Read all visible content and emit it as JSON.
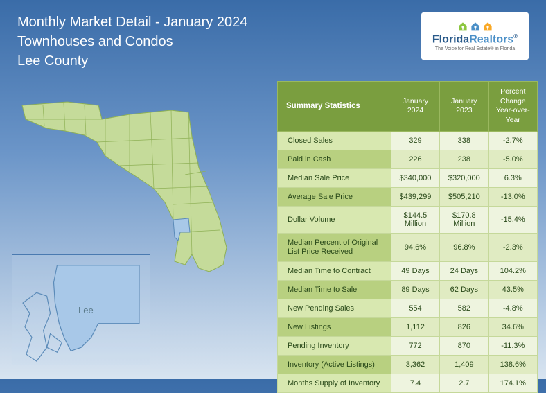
{
  "header": {
    "line1": "Monthly Market Detail - January 2024",
    "line2": "Townhouses and Condos",
    "line3": "Lee County"
  },
  "logo": {
    "brand_part1": "Florida",
    "brand_part2": "Realtors",
    "tagline": "The Voice for Real Estate® in Florida",
    "house_colors": [
      "#8cc63f",
      "#4a8fc7",
      "#f9a825"
    ]
  },
  "map": {
    "inset_label": "Lee",
    "florida_fill": "#c5db9a",
    "florida_stroke": "#8eb055",
    "highlight_fill": "#a8c8e8",
    "inset_stroke": "#4a7ab0"
  },
  "table": {
    "headers": {
      "col1": "Summary Statistics",
      "col2": "January 2024",
      "col3": "January 2023",
      "col4_line1": "Percent Change",
      "col4_line2": "Year-over-Year"
    },
    "colors": {
      "header_bg": "#7a9e3f",
      "header_text": "#ffffff",
      "odd_label_bg": "#d8e8b0",
      "odd_cell_bg": "#eef4df",
      "even_label_bg": "#b8d080",
      "even_cell_bg": "#e0ebc2",
      "border": "#c5d89a",
      "text": "#2a4a1a"
    },
    "rows": [
      {
        "label": "Closed Sales",
        "c1": "329",
        "c2": "338",
        "c3": "-2.7%"
      },
      {
        "label": "Paid in Cash",
        "c1": "226",
        "c2": "238",
        "c3": "-5.0%"
      },
      {
        "label": "Median Sale Price",
        "c1": "$340,000",
        "c2": "$320,000",
        "c3": "6.3%"
      },
      {
        "label": "Average Sale Price",
        "c1": "$439,299",
        "c2": "$505,210",
        "c3": "-13.0%"
      },
      {
        "label": "Dollar Volume",
        "c1": "$144.5 Million",
        "c2": "$170.8 Million",
        "c3": "-15.4%"
      },
      {
        "label": "Median Percent of Original List Price Received",
        "c1": "94.6%",
        "c2": "96.8%",
        "c3": "-2.3%",
        "multiline": true
      },
      {
        "label": "Median Time to Contract",
        "c1": "49 Days",
        "c2": "24 Days",
        "c3": "104.2%"
      },
      {
        "label": "Median Time to Sale",
        "c1": "89 Days",
        "c2": "62 Days",
        "c3": "43.5%"
      },
      {
        "label": "New Pending Sales",
        "c1": "554",
        "c2": "582",
        "c3": "-4.8%"
      },
      {
        "label": "New Listings",
        "c1": "1,112",
        "c2": "826",
        "c3": "34.6%"
      },
      {
        "label": "Pending Inventory",
        "c1": "772",
        "c2": "870",
        "c3": "-11.3%"
      },
      {
        "label": "Inventory (Active Listings)",
        "c1": "3,362",
        "c2": "1,409",
        "c3": "138.6%"
      },
      {
        "label": "Months Supply of Inventory",
        "c1": "7.4",
        "c2": "2.7",
        "c3": "174.1%"
      }
    ]
  }
}
